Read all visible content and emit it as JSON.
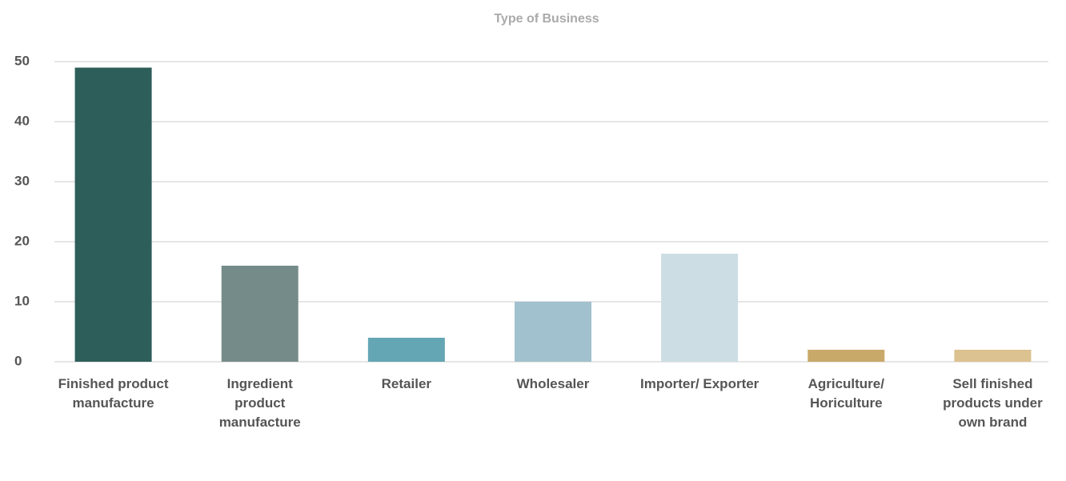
{
  "chart_data": {
    "type": "bar",
    "title": "Type of Business",
    "categories": [
      "Finished product manufacture",
      "Ingredient product manufacture",
      "Retailer",
      "Wholesaler",
      "Importer/ Exporter",
      "Agriculture/ Horiculture",
      "Sell finished products under own brand"
    ],
    "values": [
      49,
      16,
      4,
      10,
      18,
      2,
      2
    ],
    "colors": [
      "#2e5e5a",
      "#758b8a",
      "#64a6b4",
      "#a0c1cd",
      "#ccdde3",
      "#c9a96a",
      "#dcc191"
    ],
    "ylim": [
      0,
      50
    ],
    "yticks": [
      0,
      10,
      20,
      30,
      40,
      50
    ],
    "grid": true
  }
}
